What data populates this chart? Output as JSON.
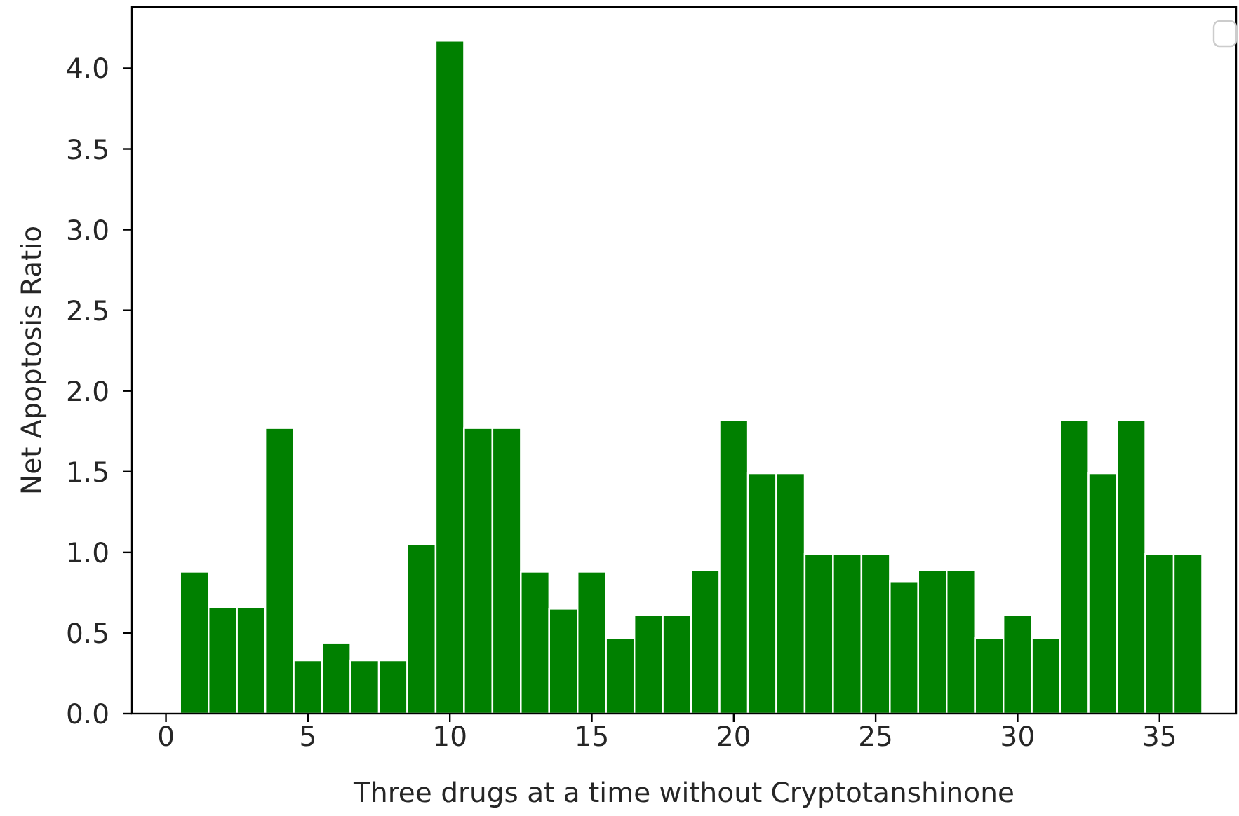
{
  "chart_data": {
    "type": "bar",
    "xlabel": "Three drugs at a time without Cryptotanshinone",
    "ylabel": "Net Apoptosis Ratio",
    "x": [
      1,
      2,
      3,
      4,
      5,
      6,
      7,
      8,
      9,
      10,
      11,
      12,
      13,
      14,
      15,
      16,
      17,
      18,
      19,
      20,
      21,
      22,
      23,
      24,
      25,
      26,
      27,
      28,
      29,
      30,
      31,
      32,
      33,
      34,
      35,
      36
    ],
    "values": [
      0.88,
      0.66,
      0.66,
      1.77,
      0.33,
      0.44,
      0.33,
      0.33,
      1.05,
      4.17,
      1.77,
      1.77,
      0.88,
      0.65,
      0.88,
      0.47,
      0.61,
      0.61,
      0.89,
      1.82,
      1.49,
      1.49,
      0.99,
      0.99,
      0.99,
      0.82,
      0.89,
      0.89,
      0.47,
      0.61,
      0.47,
      1.82,
      1.49,
      1.82,
      0.99,
      0.99
    ],
    "color": "#008000",
    "xlim": [
      -1.2,
      37.7
    ],
    "xticks": [
      0,
      5,
      10,
      15,
      20,
      25,
      30,
      35
    ],
    "ylim": [
      0,
      4.38
    ],
    "yticks": [
      {
        "value": 0,
        "label": "0.0"
      },
      {
        "value": 0.5,
        "label": "0.5"
      },
      {
        "value": 1,
        "label": "1.0"
      },
      {
        "value": 1.5,
        "label": "1.5"
      },
      {
        "value": 2,
        "label": "2.0"
      },
      {
        "value": 2.5,
        "label": "2.5"
      },
      {
        "value": 3,
        "label": "3.0"
      },
      {
        "value": 3.5,
        "label": "3.5"
      },
      {
        "value": 4,
        "label": "4.0"
      }
    ]
  }
}
